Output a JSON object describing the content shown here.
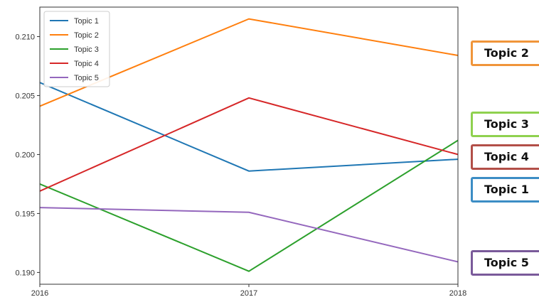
{
  "chart_data": {
    "type": "line",
    "x": [
      "2016",
      "2017",
      "2018"
    ],
    "ylim": [
      0.189,
      0.2125
    ],
    "yticks": [
      "0.190",
      "0.195",
      "0.200",
      "0.205",
      "0.210"
    ],
    "grid": false,
    "legend_position": "top-left",
    "series": [
      {
        "name": "Topic 1",
        "values": [
          0.2061,
          0.1986,
          0.1996
        ],
        "color": "#1f77b4"
      },
      {
        "name": "Topic 2",
        "values": [
          0.2041,
          0.2115,
          0.2084
        ],
        "color": "#ff7f0e"
      },
      {
        "name": "Topic 3",
        "values": [
          0.1975,
          0.1901,
          0.2012
        ],
        "color": "#2ca02c"
      },
      {
        "name": "Topic 4",
        "values": [
          0.1969,
          0.2048,
          0.2
        ],
        "color": "#d62728"
      },
      {
        "name": "Topic 5",
        "values": [
          0.1955,
          0.1951,
          0.1909
        ],
        "color": "#9467bd"
      }
    ]
  },
  "callouts": [
    {
      "label": "Topic 2",
      "color": "#f0953a"
    },
    {
      "label": "Topic 3",
      "color": "#8fd14f"
    },
    {
      "label": "Topic 4",
      "color": "#b24f48"
    },
    {
      "label": "Topic 1",
      "color": "#3c8dc5"
    },
    {
      "label": "Topic 5",
      "color": "#7a5a9a"
    }
  ]
}
